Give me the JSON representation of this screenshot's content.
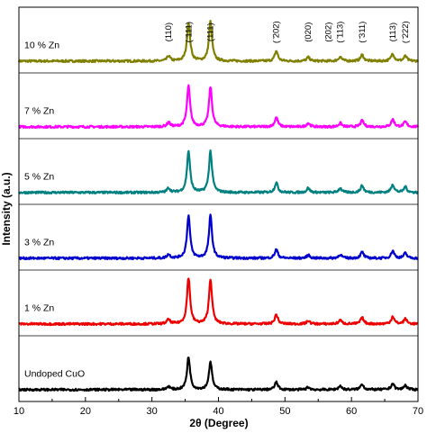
{
  "chart_data": {
    "type": "line",
    "xlabel": "2θ (Degree)",
    "ylabel": "Intensity (a.u.)",
    "xlim": [
      10,
      70
    ],
    "xticks": [
      10,
      20,
      30,
      40,
      50,
      60,
      70
    ],
    "grid": false,
    "series": [
      {
        "name": "10 % Zn",
        "color": "#808000",
        "peaks": [
          [
            32.5,
            0.08
          ],
          [
            35.5,
            0.62
          ],
          [
            38.8,
            0.63
          ],
          [
            48.7,
            0.16
          ],
          [
            53.5,
            0.06
          ],
          [
            58.3,
            0.07
          ],
          [
            61.6,
            0.1
          ],
          [
            66.2,
            0.12
          ],
          [
            68.1,
            0.08
          ]
        ]
      },
      {
        "name": "7 % Zn",
        "color": "#ff00ff",
        "peaks": [
          [
            32.5,
            0.07
          ],
          [
            35.5,
            0.65
          ],
          [
            38.8,
            0.64
          ],
          [
            48.7,
            0.15
          ],
          [
            53.5,
            0.06
          ],
          [
            58.3,
            0.06
          ],
          [
            61.6,
            0.1
          ],
          [
            66.2,
            0.12
          ],
          [
            68.1,
            0.08
          ]
        ]
      },
      {
        "name": "5 % Zn",
        "color": "#008080",
        "peaks": [
          [
            32.5,
            0.07
          ],
          [
            35.5,
            0.66
          ],
          [
            38.8,
            0.66
          ],
          [
            48.7,
            0.16
          ],
          [
            53.5,
            0.07
          ],
          [
            58.3,
            0.07
          ],
          [
            61.6,
            0.11
          ],
          [
            66.2,
            0.13
          ],
          [
            68.1,
            0.09
          ]
        ]
      },
      {
        "name": "3 % Zn",
        "color": "#0000cd",
        "peaks": [
          [
            32.5,
            0.06
          ],
          [
            35.5,
            0.68
          ],
          [
            38.8,
            0.68
          ],
          [
            48.7,
            0.14
          ],
          [
            53.5,
            0.05
          ],
          [
            58.3,
            0.06
          ],
          [
            61.6,
            0.1
          ],
          [
            66.2,
            0.12
          ],
          [
            68.1,
            0.08
          ]
        ]
      },
      {
        "name": "1 % Zn",
        "color": "#ee0000",
        "peaks": [
          [
            32.5,
            0.07
          ],
          [
            35.5,
            0.74
          ],
          [
            38.8,
            0.72
          ],
          [
            48.7,
            0.15
          ],
          [
            53.5,
            0.05
          ],
          [
            58.3,
            0.06
          ],
          [
            61.6,
            0.1
          ],
          [
            66.2,
            0.12
          ],
          [
            68.1,
            0.08
          ]
        ]
      },
      {
        "name": "Undoped CuO",
        "color": "#000000",
        "peaks": [
          [
            32.5,
            0.05
          ],
          [
            35.5,
            0.52
          ],
          [
            38.8,
            0.45
          ],
          [
            48.7,
            0.12
          ],
          [
            53.5,
            0.04
          ],
          [
            58.3,
            0.06
          ],
          [
            61.6,
            0.09
          ],
          [
            66.2,
            0.1
          ],
          [
            68.1,
            0.07
          ]
        ]
      }
    ],
    "annotations": [
      {
        "text": "(110)",
        "x": 32.5
      },
      {
        "text": "( ̄111)",
        "x": 35.5
      },
      {
        "text": "(111)",
        "x": 38.8
      },
      {
        "text": "( ̄202)",
        "x": 48.7
      },
      {
        "text": "(020)",
        "x": 53.5
      },
      {
        "text": "(202)",
        "x": 56.5
      },
      {
        "text": "( ̄113)",
        "x": 58.3
      },
      {
        "text": "( ̄311)",
        "x": 61.6
      },
      {
        "text": "(113)",
        "x": 66.2
      },
      {
        "text": "( ̄222)",
        "x": 68.1
      }
    ]
  }
}
